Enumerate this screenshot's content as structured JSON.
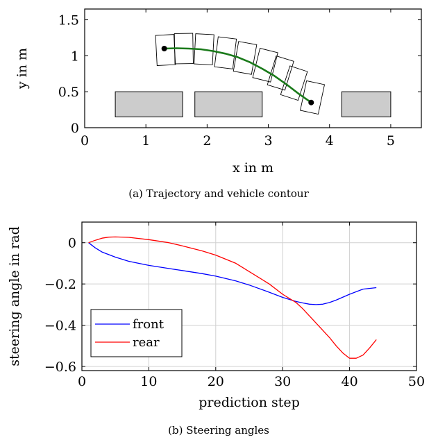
{
  "captions": {
    "top": "(a) Trajectory and vehicle contour",
    "bottom": "(b) Steering angles"
  },
  "colors": {
    "path": "#1a7a1a",
    "front": "#0000ff",
    "rear": "#ff0000",
    "obstacle_fill": "#cccccc",
    "grid": "#d0d0d0"
  },
  "chart_data": [
    {
      "type": "line",
      "title": "",
      "xlabel": "x in m",
      "ylabel": "y in m",
      "xlim": [
        0,
        5.5
      ],
      "ylim": [
        0,
        1.65
      ],
      "xticks": [
        0,
        1,
        2,
        3,
        4,
        5
      ],
      "xtick_labels": [
        "0",
        "1",
        "2",
        "3",
        "4",
        "5"
      ],
      "yticks": [
        0,
        0.5,
        1,
        1.5
      ],
      "ytick_labels": [
        "0",
        "0.5",
        "1",
        "1.5"
      ],
      "grid": false,
      "obstacles": [
        {
          "x0": 0.5,
          "x1": 1.6,
          "y0": 0.15,
          "y1": 0.5
        },
        {
          "x0": 1.8,
          "x1": 2.9,
          "y0": 0.15,
          "y1": 0.5
        },
        {
          "x0": 4.2,
          "x1": 5.0,
          "y0": 0.15,
          "y1": 0.5
        }
      ],
      "trajectory": {
        "x": [
          1.3,
          1.5,
          1.7,
          1.9,
          2.1,
          2.3,
          2.5,
          2.7,
          2.9,
          3.1,
          3.3,
          3.5,
          3.7
        ],
        "y": [
          1.1,
          1.105,
          1.1,
          1.09,
          1.065,
          1.03,
          0.98,
          0.91,
          0.82,
          0.72,
          0.6,
          0.47,
          0.35
        ]
      },
      "endpoints": [
        {
          "x": 1.3,
          "y": 1.1
        },
        {
          "x": 3.7,
          "y": 0.35
        }
      ],
      "vehicle_contour": {
        "length_m": 0.3,
        "width_m": 0.42,
        "poses": [
          {
            "x": 1.32,
            "y": 1.08,
            "heading_deg": 3
          },
          {
            "x": 1.62,
            "y": 1.1,
            "heading_deg": 1
          },
          {
            "x": 1.95,
            "y": 1.09,
            "heading_deg": -3
          },
          {
            "x": 2.3,
            "y": 1.04,
            "heading_deg": -7
          },
          {
            "x": 2.62,
            "y": 0.97,
            "heading_deg": -10
          },
          {
            "x": 2.95,
            "y": 0.87,
            "heading_deg": -14
          },
          {
            "x": 3.2,
            "y": 0.76,
            "heading_deg": -17
          },
          {
            "x": 3.42,
            "y": 0.62,
            "heading_deg": -18
          },
          {
            "x": 3.72,
            "y": 0.42,
            "heading_deg": -12
          }
        ]
      }
    },
    {
      "type": "line",
      "title": "",
      "xlabel": "prediction step",
      "ylabel": "steering angle in rad",
      "xlim": [
        0,
        50
      ],
      "ylim": [
        -0.62,
        0.1
      ],
      "xticks": [
        0,
        10,
        20,
        30,
        40,
        50
      ],
      "xtick_labels": [
        "0",
        "10",
        "20",
        "30",
        "40",
        "50"
      ],
      "yticks": [
        0,
        -0.2,
        -0.4,
        -0.6
      ],
      "ytick_labels": [
        "0",
        "−0.2",
        "−0.4",
        "−0.6"
      ],
      "grid": true,
      "legend": "lower-left",
      "series": [
        {
          "name": "front",
          "x": [
            1,
            2,
            3,
            5,
            7,
            10,
            13,
            15,
            18,
            20,
            23,
            25,
            28,
            30,
            32,
            33,
            34,
            35,
            36,
            37,
            38,
            40,
            42,
            44
          ],
          "y": [
            0,
            -0.025,
            -0.045,
            -0.07,
            -0.09,
            -0.11,
            -0.125,
            -0.135,
            -0.15,
            -0.162,
            -0.185,
            -0.205,
            -0.24,
            -0.265,
            -0.285,
            -0.292,
            -0.298,
            -0.3,
            -0.298,
            -0.29,
            -0.278,
            -0.25,
            -0.225,
            -0.218
          ]
        },
        {
          "name": "rear",
          "x": [
            1,
            2,
            3,
            4,
            5,
            7,
            10,
            13,
            15,
            18,
            20,
            23,
            25,
            28,
            30,
            32,
            33,
            35,
            37,
            38,
            39,
            40,
            41,
            42,
            43,
            44
          ],
          "y": [
            0,
            0.012,
            0.022,
            0.027,
            0.028,
            0.026,
            0.015,
            0.0,
            -0.015,
            -0.04,
            -0.06,
            -0.1,
            -0.14,
            -0.2,
            -0.25,
            -0.29,
            -0.32,
            -0.39,
            -0.46,
            -0.5,
            -0.535,
            -0.56,
            -0.56,
            -0.545,
            -0.51,
            -0.47
          ]
        }
      ]
    }
  ]
}
